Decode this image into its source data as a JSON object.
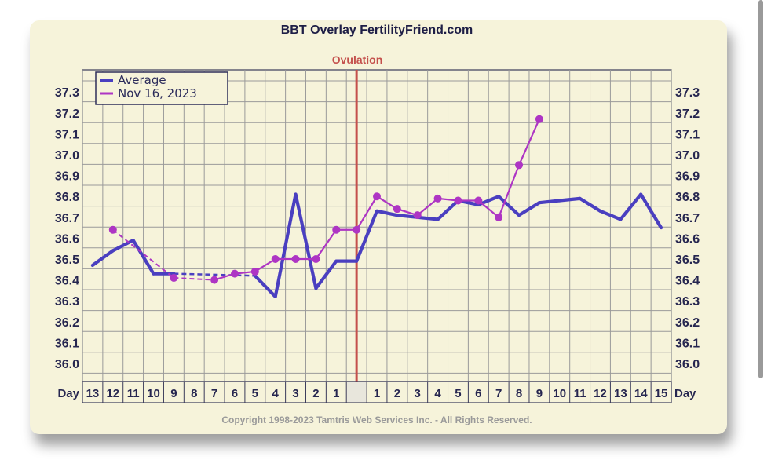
{
  "chart_data": {
    "type": "line",
    "title": "BBT Overlay FertilityFriend.com",
    "ovulation_label": "Ovulation",
    "day_label": "Day",
    "copyright": "Copyright 1998-2023 Tamtris Web Services Inc. - All Rights Reserved.",
    "ylim": [
      35.95,
      37.4
    ],
    "yticks": [
      "37.3",
      "37.2",
      "37.1",
      "37.0",
      "36.9",
      "36.8",
      "36.7",
      "36.6",
      "36.5",
      "36.4",
      "36.3",
      "36.2",
      "36.1",
      "36.0"
    ],
    "yticks_right": [
      "37.3",
      "37.2",
      "37.1",
      "37.0",
      "36.9",
      "36.8",
      "36.7",
      "36.6",
      "36.5",
      "36.4",
      "36.3",
      "36.2",
      "36.1",
      "36.0"
    ],
    "categories": [
      "13",
      "12",
      "11",
      "10",
      "9",
      "8",
      "7",
      "6",
      "5",
      "4",
      "3",
      "2",
      "1",
      "",
      "1",
      "2",
      "3",
      "4",
      "5",
      "6",
      "7",
      "8",
      "9",
      "10",
      "11",
      "12",
      "13",
      "14",
      "15"
    ],
    "ovulation_index": 13,
    "legend_position": "top-left",
    "grid": true,
    "series": [
      {
        "name": "Average",
        "color": "#4a3fc0",
        "values": [
          36.47,
          36.54,
          36.59,
          36.43,
          36.43,
          null,
          null,
          null,
          36.42,
          36.32,
          36.81,
          36.36,
          36.49,
          36.49,
          36.73,
          36.71,
          36.7,
          36.69,
          36.78,
          36.76,
          36.8,
          36.71,
          36.77,
          36.78,
          36.79,
          36.73,
          36.69,
          36.81,
          36.65
        ],
        "dashed_gaps": [
          [
            4,
            8
          ]
        ]
      },
      {
        "name": "Nov 16, 2023",
        "color": "#ae35c4",
        "values": [
          null,
          36.64,
          null,
          null,
          36.41,
          null,
          36.4,
          36.43,
          36.44,
          36.5,
          36.5,
          36.5,
          36.64,
          36.64,
          36.8,
          36.74,
          36.71,
          36.79,
          36.78,
          36.78,
          36.7,
          36.95,
          37.17,
          null,
          null,
          null,
          null,
          null,
          null
        ],
        "dashed_gaps": [
          [
            1,
            4
          ],
          [
            4,
            6
          ]
        ]
      }
    ]
  }
}
